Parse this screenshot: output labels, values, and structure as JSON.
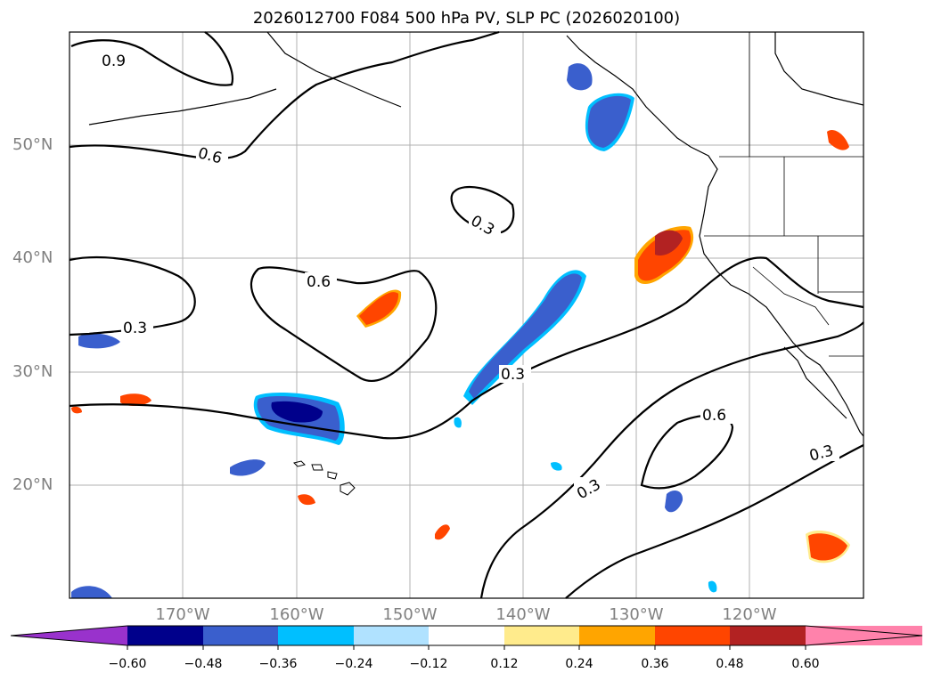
{
  "title": "2026012700 F084 500 hPa PV, SLP PC (2026020100)",
  "lat_labels": [
    "50°N",
    "40°N",
    "30°N",
    "20°N"
  ],
  "lon_labels": [
    "170°W",
    "160°W",
    "150°W",
    "140°W",
    "130°W",
    "120°W"
  ],
  "colorbar": {
    "ticks": [
      "−0.60",
      "−0.48",
      "−0.36",
      "−0.24",
      "−0.12",
      "0.12",
      "0.24",
      "0.36",
      "0.48",
      "0.60"
    ],
    "colors": [
      "#9932cc",
      "#00008b",
      "#3a5fcd",
      "#00bfff",
      "#b0e2ff",
      "#ffffff",
      "#ffeb8c",
      "#ffa500",
      "#ff4500",
      "#b22222",
      "#ff82ab"
    ]
  },
  "contour_labels": [
    "0.9",
    "0.6",
    "0.3",
    "0.6",
    "0.3",
    "0.3",
    "0.6",
    "0.3",
    "0.3"
  ]
}
